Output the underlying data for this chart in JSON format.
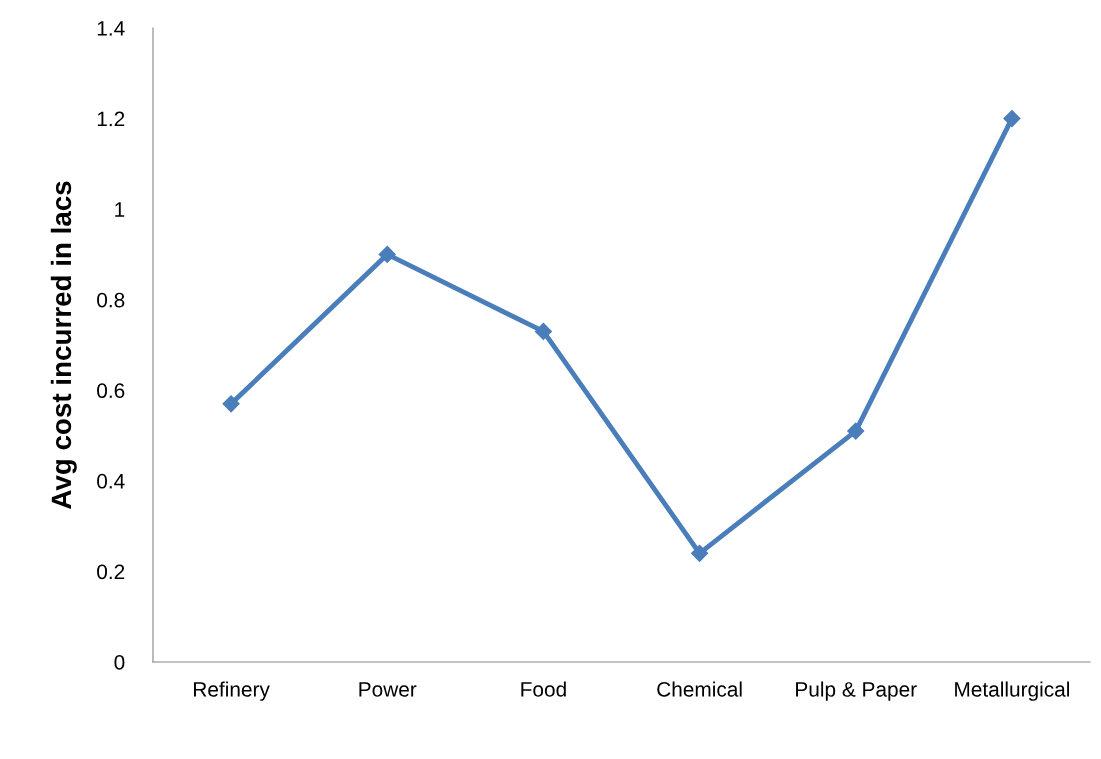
{
  "chart_data": {
    "type": "line",
    "ylabel": "Avg cost incurred in lacs",
    "categories": [
      "Refinery",
      "Power",
      "Food",
      "Chemical",
      "Pulp & Paper",
      "Metallurgical"
    ],
    "series": [
      {
        "color": "#4a7ebb",
        "values": [
          0.57,
          0.9,
          0.73,
          0.24,
          0.51,
          1.2
        ]
      }
    ],
    "ylim": [
      0,
      1.4
    ],
    "yticks": [
      {
        "value": 0,
        "label": "0"
      },
      0.2,
      0.4,
      0.6,
      0.8,
      {
        "value": 1,
        "label": "1"
      },
      1.2,
      1.4
    ],
    "marker": "diamond",
    "line_style": "solid",
    "grid": false,
    "legend": false
  }
}
